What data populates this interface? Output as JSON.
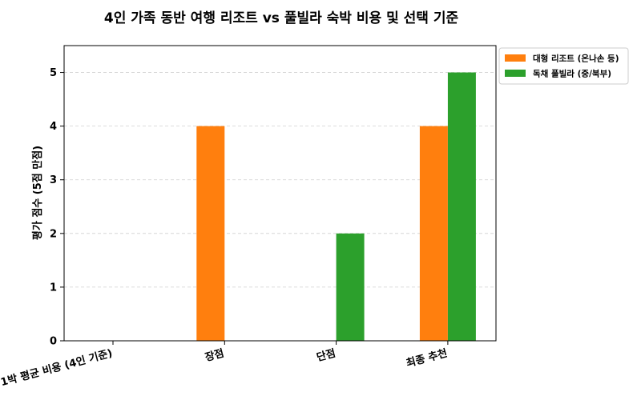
{
  "chart_data": {
    "type": "bar",
    "title": "4인 가족 동반 여행 리조트 vs 풀빌라 숙박 비용 및 선택 기준",
    "xlabel": "",
    "ylabel": "평가 점수 (5점 만점)",
    "categories": [
      "1박 평균 비용 (4인 기준)",
      "장점",
      "단점",
      "최종 추천"
    ],
    "series": [
      {
        "name": "대형 리조트 (온나손 등)",
        "color": "#ff7f0e",
        "values": [
          0,
          4,
          0,
          4
        ]
      },
      {
        "name": "독채 풀빌라 (중/북부)",
        "color": "#2ca02c",
        "values": [
          0,
          0,
          2,
          5
        ]
      }
    ],
    "ylim": [
      0,
      5.5
    ],
    "yticks": [
      0,
      1,
      2,
      3,
      4,
      5
    ],
    "grid": true,
    "legend_position": "outside-top-right"
  }
}
